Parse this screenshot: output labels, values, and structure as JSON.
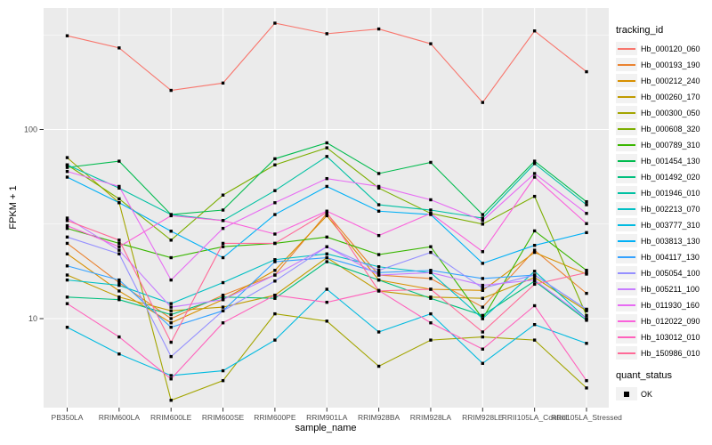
{
  "figure": {
    "bg": "#FFFFFF",
    "panel_bg": "#EBEBEB",
    "grid_color": "#FFFFFF",
    "tick_text_color": "#4D4D4D",
    "tick_mark_color": "#333333",
    "point_color": "#000000"
  },
  "chart_data": {
    "type": "line",
    "title": "",
    "xlabel": "sample_name",
    "ylabel": "FPKM + 1",
    "y_scale": "log10",
    "ylim": [
      3.5,
      430
    ],
    "y_ticks": [
      {
        "value": 100,
        "label": "100"
      },
      {
        "value": 10,
        "label": "10"
      }
    ],
    "y_minor_breaks": [
      316.2,
      31.62
    ],
    "legend_position": "right",
    "grid": true,
    "point_marker": "black-square",
    "categories": [
      "PB350LA",
      "RRIM600LA",
      "RRIM600LE",
      "RRIM600SE",
      "RRIM600PE",
      "RRIM901LA",
      "RRIM928BA",
      "RRIM928LA",
      "RRIM928LE",
      "RRII105LA_Control",
      "RRII105LA_Stressed"
    ],
    "series": [
      {
        "name": "Hb_000120_060",
        "color": "#F8766D",
        "values": [
          313,
          270,
          161,
          176,
          365,
          321,
          340,
          284,
          139,
          332,
          202
        ]
      },
      {
        "name": "Hb_000193_190",
        "color": "#EA8331",
        "values": [
          25,
          15.5,
          10,
          13.3,
          17,
          36,
          17,
          16.3,
          11.5,
          23,
          13.6
        ]
      },
      {
        "name": "Hb_000212_240",
        "color": "#D89000",
        "values": [
          22,
          14,
          9.5,
          12.6,
          18,
          35,
          16,
          14.3,
          14.1,
          22.4,
          17.2
        ]
      },
      {
        "name": "Hb_000260_170",
        "color": "#C09B00",
        "values": [
          17,
          13,
          11,
          11.5,
          13.3,
          21,
          14,
          13,
          12.8,
          16.5,
          11
        ]
      },
      {
        "name": "Hb_000300_050",
        "color": "#A3A500",
        "values": [
          71,
          41,
          3.7,
          4.7,
          10.6,
          9.7,
          5.6,
          7.7,
          8,
          7.7,
          4.3
        ]
      },
      {
        "name": "Hb_000608_320",
        "color": "#7CAE00",
        "values": [
          65,
          43,
          26,
          45,
          65,
          80,
          49,
          36,
          31.6,
          44.3,
          10.4
        ]
      },
      {
        "name": "Hb_000789_310",
        "color": "#39B600",
        "values": [
          30,
          25,
          21,
          24,
          25,
          27,
          21.8,
          24,
          10,
          29.1,
          18
        ]
      },
      {
        "name": "Hb_001454_130",
        "color": "#00BB4E",
        "values": [
          63,
          68,
          35.5,
          37.5,
          70,
          85,
          58.5,
          67,
          35.5,
          68,
          41.5
        ]
      },
      {
        "name": "Hb_001492_020",
        "color": "#00BF7D",
        "values": [
          13,
          12.6,
          10.5,
          13,
          12.8,
          20,
          16,
          12.8,
          10.4,
          15.8,
          9.8
        ]
      },
      {
        "name": "Hb_001946_010",
        "color": "#00C1A3",
        "values": [
          65,
          49,
          35.5,
          33,
          47.5,
          72,
          40,
          37.5,
          34,
          66,
          40
        ]
      },
      {
        "name": "Hb_002213_070",
        "color": "#00BFC4",
        "values": [
          16,
          15,
          12,
          15.5,
          20.5,
          22,
          18.8,
          17.5,
          10,
          17.8,
          10
        ]
      },
      {
        "name": "Hb_003777_310",
        "color": "#00BAE0",
        "values": [
          9,
          6.5,
          5,
          5.3,
          7.7,
          14.3,
          8.5,
          10.6,
          5.8,
          9.3,
          7.4
        ]
      },
      {
        "name": "Hb_003813_130",
        "color": "#00B0F6",
        "values": [
          56,
          41,
          29,
          21,
          35.5,
          50,
          37,
          35.5,
          19.6,
          24.4,
          28.5
        ]
      },
      {
        "name": "Hb_004117_130",
        "color": "#35A2FF",
        "values": [
          19,
          16,
          9,
          11,
          20,
          21,
          17.5,
          18,
          16.3,
          17,
          11.2
        ]
      },
      {
        "name": "Hb_005054_100",
        "color": "#9590FF",
        "values": [
          27,
          22,
          6.3,
          11,
          15.8,
          24,
          18,
          22.4,
          14.5,
          17,
          11.2
        ]
      },
      {
        "name": "Hb_005211_100",
        "color": "#C77CFF",
        "values": [
          34,
          23,
          11.5,
          12.6,
          17,
          24,
          17,
          17.5,
          15,
          16,
          10
        ]
      },
      {
        "name": "Hb_011930_160",
        "color": "#E76BF3",
        "values": [
          60,
          50,
          16,
          30,
          41,
          55,
          50,
          42.5,
          33,
          58.5,
          36
        ]
      },
      {
        "name": "Hb_012022_090",
        "color": "#FA62DB",
        "values": [
          31,
          24,
          35,
          33,
          28,
          37,
          27.5,
          36,
          22.6,
          56,
          31.8
        ]
      },
      {
        "name": "Hb_103012_010",
        "color": "#FF62BC",
        "values": [
          12,
          8,
          4.8,
          9.5,
          13.3,
          12.2,
          14.1,
          9.5,
          6.9,
          11.7,
          4.7
        ]
      },
      {
        "name": "Hb_150986_010",
        "color": "#FF6A98",
        "values": [
          33,
          26,
          7.5,
          25,
          25,
          36.5,
          14,
          14.3,
          8.5,
          15.2,
          17.5
        ]
      }
    ]
  },
  "legend": {
    "tracking_title": "tracking_id",
    "quant_title": "quant_status",
    "quant_items": [
      {
        "label": "OK",
        "marker": "black-square"
      }
    ]
  }
}
